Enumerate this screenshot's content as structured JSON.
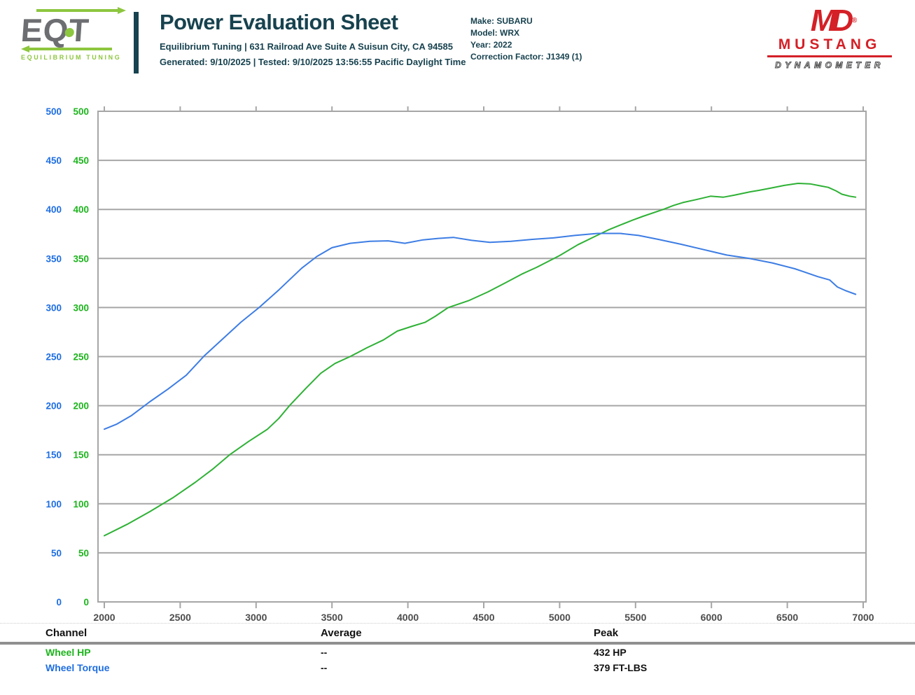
{
  "colors": {
    "teal": "#17424f",
    "eqt_green": "#8dc63f",
    "eqt_gray": "#6d6e71",
    "md_red": "#d42027",
    "hp_green": "#2eb135",
    "hp_green_label": "#1db41d",
    "torque_blue": "#3d7de4",
    "torque_blue_label": "#1e6ee2",
    "grid_gray": "#a6a6a6",
    "axis_label_gray": "#4d4d4d"
  },
  "header": {
    "title": "Power Evaluation Sheet",
    "address_line": "Equilibrium Tuning | 631 Railroad Ave Suite A Suisun City, CA 94585",
    "generated_line": "Generated: 9/10/2025 | Tested: 9/10/2025 13:56:55 Pacific Daylight Time",
    "eqt_logo_text": "EQT",
    "eqt_logo_caption": "EQUILIBRIUM TUNING",
    "vehicle_lines": [
      "Make: SUBARU",
      "Model: WRX",
      "Year: 2022",
      "Correction Factor: J1349 (1)"
    ],
    "md_logo": {
      "monogram": "MD",
      "reg": "®",
      "line1": "MUSTANG",
      "line2": "DYNAMOMETER"
    }
  },
  "chart_data": {
    "type": "line",
    "title": "",
    "xlabel": "",
    "ylabel": "",
    "x_ticks": [
      2000,
      2500,
      3000,
      3500,
      4000,
      4500,
      5000,
      5500,
      6000,
      6500,
      7000
    ],
    "y_ticks": [
      0,
      50,
      100,
      150,
      200,
      250,
      300,
      350,
      400,
      450,
      500
    ],
    "ylim": [
      0,
      500
    ],
    "xlim": [
      2000,
      7000
    ],
    "grid": "horizontal",
    "legend_position": "none",
    "dual_y_axis_label_columns": [
      {
        "series": "Wheel Torque",
        "color": "#1e6ee2"
      },
      {
        "series": "Wheel HP",
        "color": "#1db41d"
      }
    ],
    "series": [
      {
        "name": "Wheel HP",
        "unit": "HP",
        "color": "#2eb135",
        "peak": "432 HP",
        "points": [
          [
            2000,
            67.5
          ],
          [
            2150,
            79
          ],
          [
            2300,
            92
          ],
          [
            2450,
            106
          ],
          [
            2600,
            122
          ],
          [
            2720,
            136
          ],
          [
            2826,
            150
          ],
          [
            2950,
            163.5
          ],
          [
            3075,
            176
          ],
          [
            3150,
            187
          ],
          [
            3220,
            200
          ],
          [
            3330,
            218
          ],
          [
            3426,
            233
          ],
          [
            3520,
            243
          ],
          [
            3619,
            250
          ],
          [
            3730,
            259
          ],
          [
            3839,
            267
          ],
          [
            3931,
            276
          ],
          [
            4030,
            281
          ],
          [
            4115,
            285
          ],
          [
            4180,
            291
          ],
          [
            4266,
            300
          ],
          [
            4400,
            307
          ],
          [
            4528,
            316
          ],
          [
            4640,
            325
          ],
          [
            4750,
            334
          ],
          [
            4849,
            341
          ],
          [
            5000,
            353
          ],
          [
            5120,
            364
          ],
          [
            5239,
            373
          ],
          [
            5320,
            379
          ],
          [
            5399,
            384
          ],
          [
            5480,
            389
          ],
          [
            5550,
            393
          ],
          [
            5683,
            400
          ],
          [
            5750,
            404
          ],
          [
            5812,
            407
          ],
          [
            5900,
            410
          ],
          [
            5995,
            413.5
          ],
          [
            6080,
            412.5
          ],
          [
            6150,
            414.5
          ],
          [
            6257,
            418
          ],
          [
            6316,
            419.5
          ],
          [
            6400,
            422
          ],
          [
            6480,
            424.5
          ],
          [
            6570,
            426.5
          ],
          [
            6650,
            426
          ],
          [
            6720,
            424
          ],
          [
            6770,
            422.5
          ],
          [
            6820,
            419
          ],
          [
            6860,
            415.5
          ],
          [
            6910,
            413.5
          ],
          [
            6950,
            412.5
          ]
        ]
      },
      {
        "name": "Wheel Torque",
        "unit": "FT-LBS",
        "color": "#3d7de4",
        "peak": "379 FT-LBS",
        "points": [
          [
            2000,
            176
          ],
          [
            2080,
            181
          ],
          [
            2180,
            190
          ],
          [
            2300,
            204
          ],
          [
            2420,
            217
          ],
          [
            2540,
            231
          ],
          [
            2660,
            251
          ],
          [
            2780,
            268
          ],
          [
            2900,
            285
          ],
          [
            3020,
            300
          ],
          [
            3150,
            318
          ],
          [
            3300,
            340
          ],
          [
            3400,
            352
          ],
          [
            3500,
            361
          ],
          [
            3620,
            365.5
          ],
          [
            3750,
            367.5
          ],
          [
            3870,
            368
          ],
          [
            3980,
            365.5
          ],
          [
            4100,
            369
          ],
          [
            4200,
            370.5
          ],
          [
            4300,
            371.5
          ],
          [
            4420,
            368.5
          ],
          [
            4540,
            366.5
          ],
          [
            4680,
            367.5
          ],
          [
            4820,
            369.5
          ],
          [
            4960,
            371
          ],
          [
            5100,
            373.5
          ],
          [
            5250,
            375.5
          ],
          [
            5400,
            375.5
          ],
          [
            5520,
            373.5
          ],
          [
            5650,
            369.5
          ],
          [
            5800,
            364.5
          ],
          [
            5950,
            359
          ],
          [
            6100,
            353.5
          ],
          [
            6250,
            350
          ],
          [
            6400,
            345.5
          ],
          [
            6550,
            339.5
          ],
          [
            6700,
            331.5
          ],
          [
            6780,
            328
          ],
          [
            6830,
            321
          ],
          [
            6880,
            317.5
          ],
          [
            6950,
            313.5
          ]
        ]
      }
    ]
  },
  "results_table": {
    "headers": [
      "Channel",
      "Average",
      "Peak"
    ],
    "rows": [
      {
        "channel": "Wheel HP",
        "average": "--",
        "peak": "432 HP",
        "color": "#1db41d"
      },
      {
        "channel": "Wheel Torque",
        "average": "--",
        "peak": "379 FT-LBS",
        "color": "#1e6ee2"
      }
    ]
  }
}
